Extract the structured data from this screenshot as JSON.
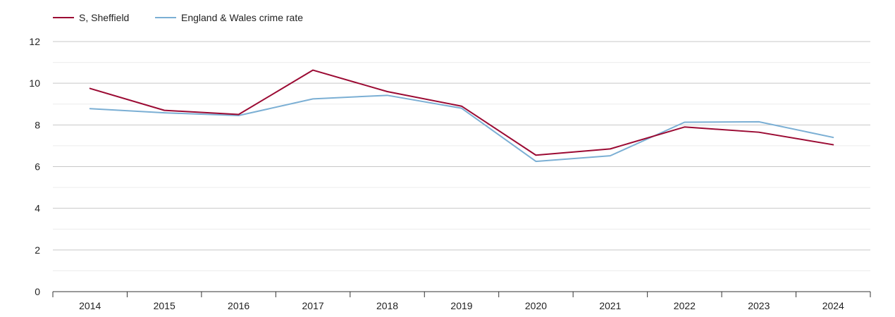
{
  "chart_data": {
    "type": "line",
    "title": "",
    "xlabel": "",
    "ylabel": "",
    "categories": [
      "2014",
      "2015",
      "2016",
      "2017",
      "2018",
      "2019",
      "2020",
      "2021",
      "2022",
      "2023",
      "2024"
    ],
    "ylim": [
      0,
      12
    ],
    "yticks": [
      "0",
      "2",
      "4",
      "6",
      "8",
      "10",
      "12"
    ],
    "grid": true,
    "legend_position": "top-left",
    "series": [
      {
        "name": "S, Sheffield",
        "color": "#9b0a33",
        "values": [
          9.75,
          8.7,
          8.5,
          10.63,
          9.6,
          8.9,
          6.55,
          6.85,
          7.9,
          7.65,
          7.05
        ]
      },
      {
        "name": "England & Wales crime rate",
        "color": "#7bafd4",
        "values": [
          8.78,
          8.58,
          8.45,
          9.25,
          9.42,
          8.8,
          6.25,
          6.52,
          8.13,
          8.15,
          7.4
        ]
      }
    ]
  }
}
